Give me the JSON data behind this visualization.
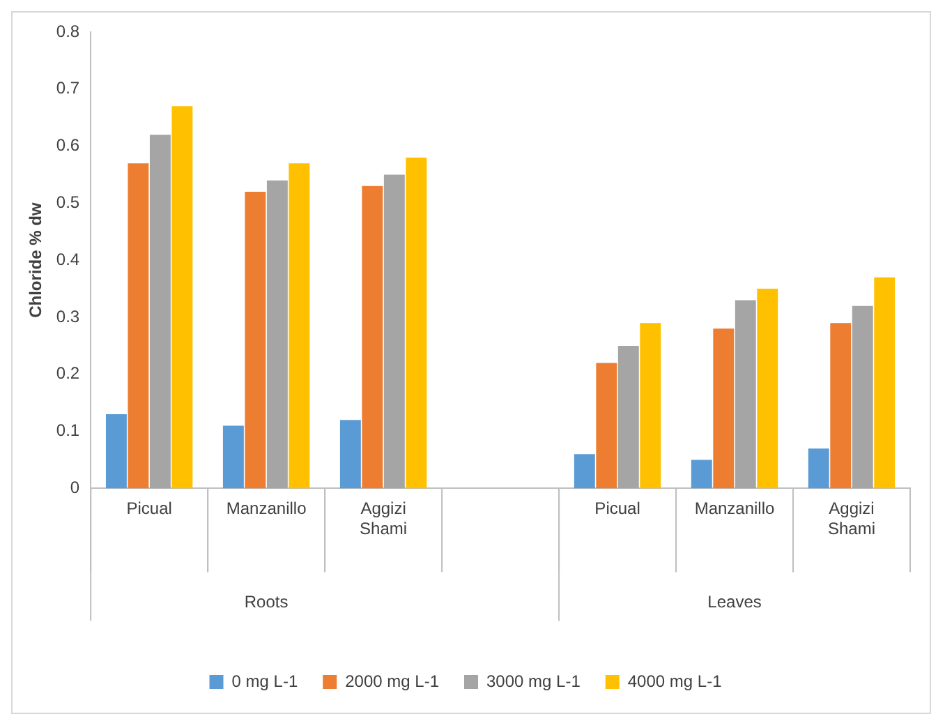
{
  "chart_data": {
    "type": "bar",
    "ylabel": "Chloride % dw",
    "categories": [
      "Picual",
      "Manzanillo",
      "Aggizi Shami",
      null,
      "Picual",
      "Manzanillo",
      "Aggizi Shami"
    ],
    "series": [
      {
        "name": "0 mg L-1",
        "color": "#5b9bd5",
        "values": [
          0.13,
          0.11,
          0.12,
          null,
          0.06,
          0.05,
          0.07
        ]
      },
      {
        "name": "2000 mg L-1",
        "color": "#ed7d31",
        "values": [
          0.57,
          0.52,
          0.53,
          null,
          0.22,
          0.28,
          0.29
        ]
      },
      {
        "name": "3000 mg L-1",
        "color": "#a5a5a5",
        "values": [
          0.62,
          0.54,
          0.55,
          null,
          0.25,
          0.33,
          0.32
        ]
      },
      {
        "name": "4000 mg L-1",
        "color": "#ffc000",
        "values": [
          0.67,
          0.57,
          0.58,
          null,
          0.29,
          0.35,
          0.37
        ]
      }
    ],
    "annotations": [
      "Roots",
      "Leaves"
    ],
    "ylim": [
      0,
      0.8
    ],
    "yticks": [
      0,
      0.1,
      0.2,
      0.3,
      0.4,
      0.5,
      0.6,
      0.7,
      0.8
    ],
    "grid": false,
    "legend": "bottom"
  }
}
